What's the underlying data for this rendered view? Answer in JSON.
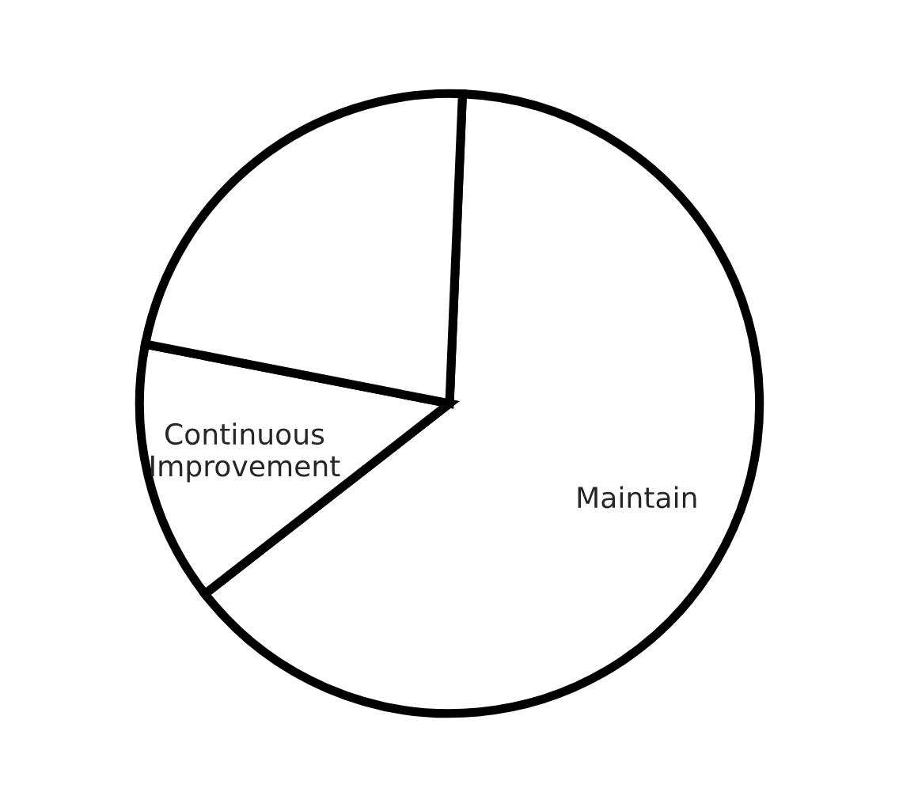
{
  "chart_data": {
    "type": "pie",
    "categories": [
      "Maintain",
      "Continuous\nImprovement",
      null
    ],
    "values": [
      63.8,
      13.6,
      22.6
    ],
    "colors": [
      "#ffffff",
      "#ffffff",
      "#ffffff"
    ]
  }
}
